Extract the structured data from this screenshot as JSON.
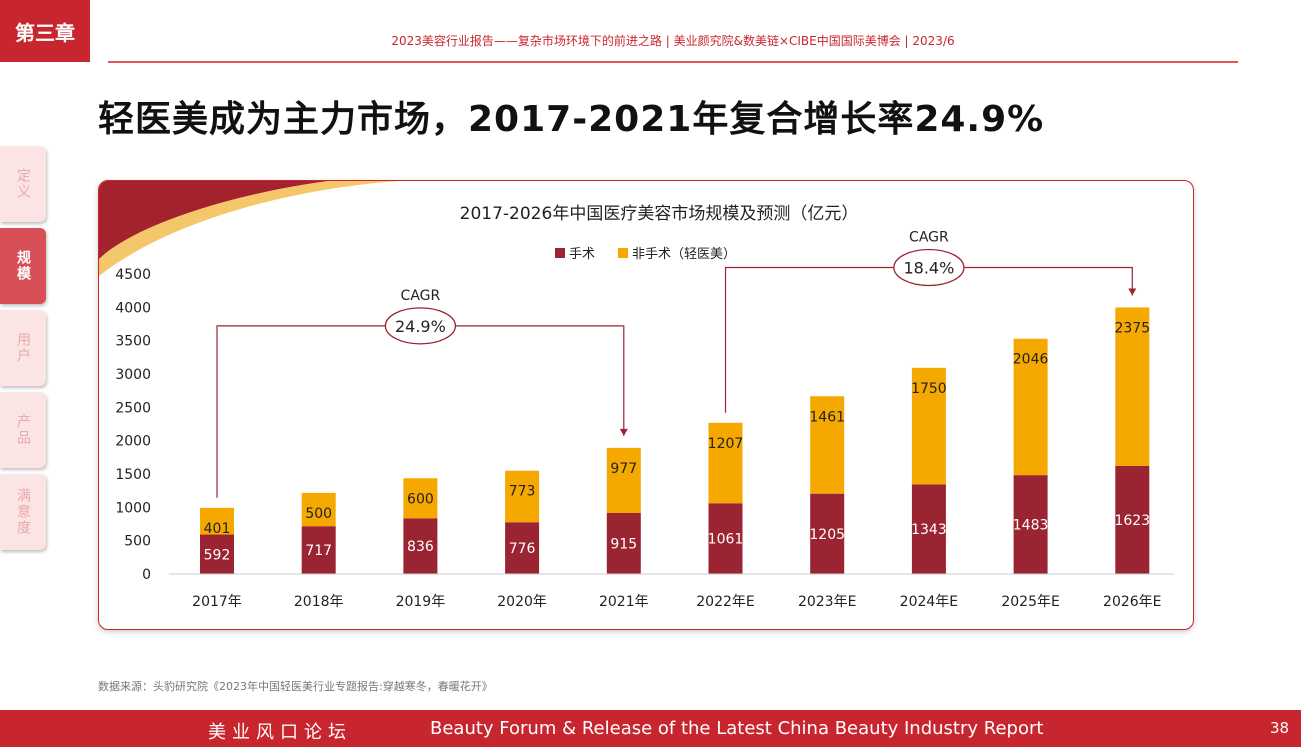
{
  "chapter": "第三章",
  "header": {
    "text": "2023美容行业报告——复杂市场环境下的前进之路   |   美业颜究院&数美链×CIBE中国国际美博会   |   2023/6"
  },
  "title": "轻医美成为主力市场，2017-2021年复合增长率24.9%",
  "side_tabs": [
    {
      "label": "定义",
      "active": false
    },
    {
      "label": "规模",
      "active": true
    },
    {
      "label": "用户",
      "active": false
    },
    {
      "label": "产品",
      "active": false
    },
    {
      "label": "满意度",
      "active": false
    }
  ],
  "chart_data": {
    "type": "bar",
    "stacked": true,
    "title": "2017-2026年中国医疗美容市场规模及预测（亿元）",
    "categories": [
      "2017年",
      "2018年",
      "2019年",
      "2020年",
      "2021年",
      "2022年E",
      "2023年E",
      "2024年E",
      "2025年E",
      "2026年E"
    ],
    "series": [
      {
        "name": "手术",
        "color": "#9b2432",
        "values": [
          592,
          717,
          836,
          776,
          915,
          1061,
          1205,
          1343,
          1483,
          1623
        ]
      },
      {
        "name": "非手术（轻医美）",
        "color": "#f5a800",
        "values": [
          401,
          500,
          600,
          773,
          977,
          1207,
          1461,
          1750,
          2046,
          2375
        ]
      }
    ],
    "yticks": [
      0,
      500,
      1000,
      1500,
      2000,
      2500,
      3000,
      3500,
      4000,
      4500
    ],
    "ylim": [
      0,
      4500
    ],
    "legend": "top-center",
    "annotations": [
      {
        "label": "CAGR",
        "value": "24.9%",
        "from": "2017年",
        "to": "2021年"
      },
      {
        "label": "CAGR",
        "value": "18.4%",
        "from": "2022年E",
        "to": "2026年E"
      }
    ]
  },
  "source": "数据来源：头豹研究院《2023年中国轻医美行业专题报告:穿越寒冬，春暖花开》",
  "footer": {
    "cn": "美业风口论坛",
    "en": "Beauty Forum & Release of the Latest China Beauty Industry Report",
    "page": "38"
  }
}
